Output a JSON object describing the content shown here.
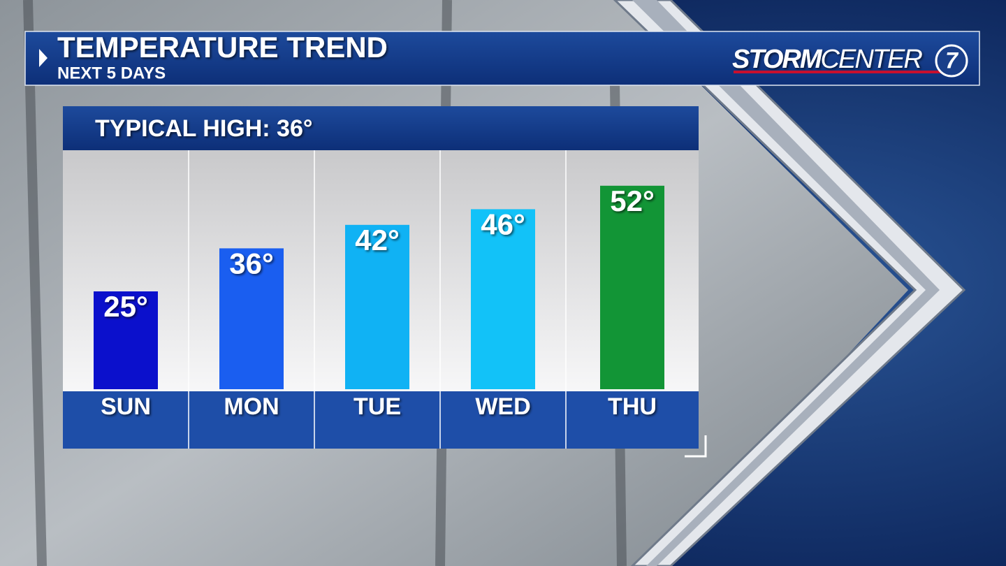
{
  "chart_data": {
    "type": "bar",
    "title": "TEMPERATURE TREND",
    "subtitle": "NEXT 5 DAYS",
    "annotation": "TYPICAL HIGH: 36°",
    "categories": [
      "SUN",
      "MON",
      "TUE",
      "WED",
      "THU"
    ],
    "values": [
      25,
      36,
      42,
      46,
      52
    ],
    "value_labels": [
      "25°",
      "36°",
      "42°",
      "46°",
      "52°"
    ],
    "colors": [
      "#0b10cc",
      "#1a5ef0",
      "#10b2f4",
      "#12c2f8",
      "#129536"
    ]
  },
  "brand": {
    "bold": "STORM",
    "light": "CENTER",
    "number": "7"
  }
}
